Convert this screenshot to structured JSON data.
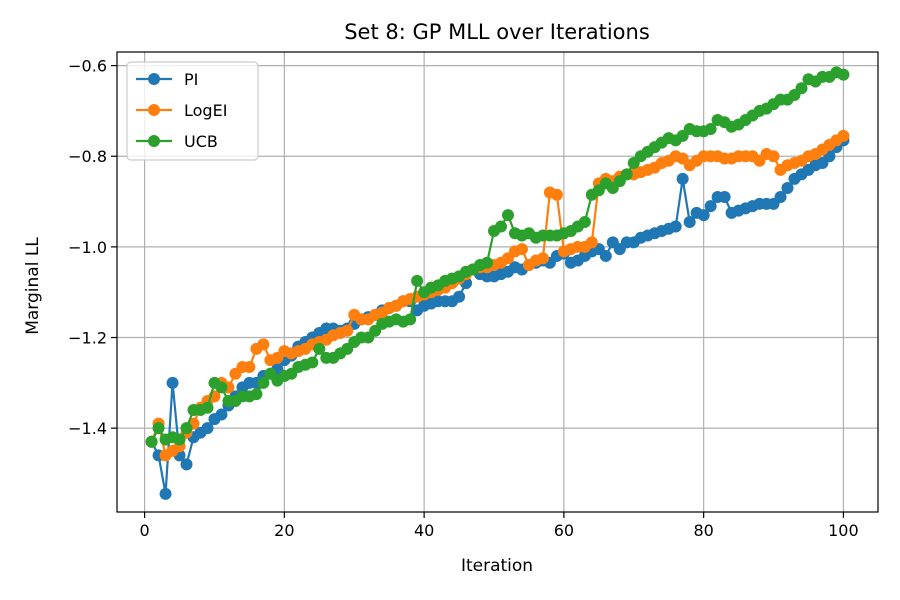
{
  "chart_data": {
    "type": "line",
    "title": "Set 8: GP MLL over Iterations",
    "xlabel": "Iteration",
    "ylabel": "Marginal LL",
    "xlim": [
      -3.95,
      104.95
    ],
    "ylim": [
      -1.585,
      -0.57
    ],
    "xticks": [
      0,
      20,
      40,
      60,
      80,
      100
    ],
    "xtick_labels": [
      "0",
      "20",
      "40",
      "60",
      "80",
      "100"
    ],
    "yticks": [
      -1.4,
      -1.2,
      -1.0,
      -0.8,
      -0.6
    ],
    "ytick_labels": [
      "−1.4",
      "−1.2",
      "−1.0",
      "−0.8",
      "−0.6"
    ],
    "grid": true,
    "legend_position": "top-left",
    "series": [
      {
        "name": "PI",
        "color": "#1f77b4",
        "x": [
          1,
          2,
          3,
          4,
          5,
          6,
          7,
          8,
          9,
          10,
          11,
          12,
          13,
          14,
          15,
          16,
          17,
          18,
          19,
          20,
          21,
          22,
          23,
          24,
          25,
          26,
          27,
          28,
          29,
          30,
          31,
          32,
          33,
          34,
          35,
          36,
          37,
          38,
          39,
          40,
          41,
          42,
          43,
          44,
          45,
          46,
          47,
          48,
          49,
          50,
          51,
          52,
          53,
          54,
          55,
          56,
          57,
          58,
          59,
          60,
          61,
          62,
          63,
          64,
          65,
          66,
          67,
          68,
          69,
          70,
          71,
          72,
          73,
          74,
          75,
          76,
          77,
          78,
          79,
          80,
          81,
          82,
          83,
          84,
          85,
          86,
          87,
          88,
          89,
          90,
          91,
          92,
          93,
          94,
          95,
          96,
          97,
          98,
          99,
          100
        ],
        "values": [
          -1.43,
          -1.46,
          -1.545,
          -1.3,
          -1.46,
          -1.48,
          -1.42,
          -1.41,
          -1.4,
          -1.38,
          -1.37,
          -1.35,
          -1.33,
          -1.31,
          -1.3,
          -1.3,
          -1.285,
          -1.28,
          -1.27,
          -1.25,
          -1.24,
          -1.22,
          -1.21,
          -1.2,
          -1.19,
          -1.18,
          -1.18,
          -1.185,
          -1.18,
          -1.17,
          -1.16,
          -1.155,
          -1.15,
          -1.14,
          -1.135,
          -1.13,
          -1.12,
          -1.12,
          -1.14,
          -1.13,
          -1.125,
          -1.12,
          -1.12,
          -1.12,
          -1.11,
          -1.08,
          -1.05,
          -1.06,
          -1.065,
          -1.065,
          -1.06,
          -1.055,
          -1.045,
          -1.05,
          -1.04,
          -1.035,
          -1.03,
          -1.035,
          -1.02,
          -1.015,
          -1.035,
          -1.03,
          -1.02,
          -1.01,
          -1.005,
          -1.02,
          -0.99,
          -1.005,
          -0.99,
          -0.99,
          -0.98,
          -0.975,
          -0.97,
          -0.965,
          -0.96,
          -0.955,
          -0.85,
          -0.945,
          -0.925,
          -0.93,
          -0.91,
          -0.89,
          -0.89,
          -0.925,
          -0.92,
          -0.915,
          -0.91,
          -0.905,
          -0.905,
          -0.905,
          -0.89,
          -0.87,
          -0.85,
          -0.84,
          -0.83,
          -0.82,
          -0.815,
          -0.8,
          -0.78,
          -0.765
        ]
      },
      {
        "name": "LogEI",
        "color": "#ff7f0e",
        "x": [
          1,
          2,
          3,
          4,
          5,
          6,
          7,
          8,
          9,
          10,
          11,
          12,
          13,
          14,
          15,
          16,
          17,
          18,
          19,
          20,
          21,
          22,
          23,
          24,
          25,
          26,
          27,
          28,
          29,
          30,
          31,
          32,
          33,
          34,
          35,
          36,
          37,
          38,
          39,
          40,
          41,
          42,
          43,
          44,
          45,
          46,
          47,
          48,
          49,
          50,
          51,
          52,
          53,
          54,
          55,
          56,
          57,
          58,
          59,
          60,
          61,
          62,
          63,
          64,
          65,
          66,
          67,
          68,
          69,
          70,
          71,
          72,
          73,
          74,
          75,
          76,
          77,
          78,
          79,
          80,
          81,
          82,
          83,
          84,
          85,
          86,
          87,
          88,
          89,
          90,
          91,
          92,
          93,
          94,
          95,
          96,
          97,
          98,
          99,
          100
        ],
        "values": [
          -1.43,
          -1.39,
          -1.46,
          -1.45,
          -1.44,
          -1.41,
          -1.39,
          -1.355,
          -1.34,
          -1.33,
          -1.3,
          -1.31,
          -1.28,
          -1.265,
          -1.265,
          -1.225,
          -1.215,
          -1.25,
          -1.245,
          -1.23,
          -1.235,
          -1.23,
          -1.225,
          -1.215,
          -1.21,
          -1.205,
          -1.195,
          -1.19,
          -1.185,
          -1.15,
          -1.16,
          -1.16,
          -1.15,
          -1.145,
          -1.135,
          -1.13,
          -1.12,
          -1.115,
          -1.11,
          -1.105,
          -1.1,
          -1.095,
          -1.09,
          -1.08,
          -1.07,
          -1.06,
          -1.05,
          -1.045,
          -1.045,
          -1.04,
          -1.035,
          -1.025,
          -1.01,
          -1.005,
          -1.04,
          -1.03,
          -1.025,
          -0.88,
          -0.885,
          -1.01,
          -1.005,
          -1.0,
          -1.0,
          -0.99,
          -0.86,
          -0.85,
          -0.855,
          -0.845,
          -0.84,
          -0.84,
          -0.835,
          -0.83,
          -0.825,
          -0.815,
          -0.81,
          -0.8,
          -0.805,
          -0.82,
          -0.81,
          -0.8,
          -0.8,
          -0.8,
          -0.805,
          -0.805,
          -0.8,
          -0.8,
          -0.8,
          -0.81,
          -0.795,
          -0.8,
          -0.83,
          -0.82,
          -0.815,
          -0.81,
          -0.8,
          -0.795,
          -0.785,
          -0.775,
          -0.765,
          -0.755
        ]
      },
      {
        "name": "UCB",
        "color": "#2ca02c",
        "x": [
          1,
          2,
          3,
          4,
          5,
          6,
          7,
          8,
          9,
          10,
          11,
          12,
          13,
          14,
          15,
          16,
          17,
          18,
          19,
          20,
          21,
          22,
          23,
          24,
          25,
          26,
          27,
          28,
          29,
          30,
          31,
          32,
          33,
          34,
          35,
          36,
          37,
          38,
          39,
          40,
          41,
          42,
          43,
          44,
          45,
          46,
          47,
          48,
          49,
          50,
          51,
          52,
          53,
          54,
          55,
          56,
          57,
          58,
          59,
          60,
          61,
          62,
          63,
          64,
          65,
          66,
          67,
          68,
          69,
          70,
          71,
          72,
          73,
          74,
          75,
          76,
          77,
          78,
          79,
          80,
          81,
          82,
          83,
          84,
          85,
          86,
          87,
          88,
          89,
          90,
          91,
          92,
          93,
          94,
          95,
          96,
          97,
          98,
          99,
          100
        ],
        "values": [
          -1.43,
          -1.4,
          -1.425,
          -1.42,
          -1.425,
          -1.4,
          -1.36,
          -1.36,
          -1.355,
          -1.3,
          -1.31,
          -1.34,
          -1.34,
          -1.33,
          -1.33,
          -1.325,
          -1.3,
          -1.28,
          -1.295,
          -1.285,
          -1.28,
          -1.265,
          -1.26,
          -1.255,
          -1.225,
          -1.245,
          -1.245,
          -1.235,
          -1.225,
          -1.21,
          -1.2,
          -1.2,
          -1.185,
          -1.17,
          -1.165,
          -1.16,
          -1.165,
          -1.16,
          -1.075,
          -1.1,
          -1.09,
          -1.085,
          -1.075,
          -1.07,
          -1.065,
          -1.055,
          -1.05,
          -1.04,
          -1.035,
          -0.965,
          -0.955,
          -0.93,
          -0.97,
          -0.975,
          -0.97,
          -0.98,
          -0.975,
          -0.975,
          -0.975,
          -0.97,
          -0.965,
          -0.955,
          -0.945,
          -0.885,
          -0.875,
          -0.86,
          -0.87,
          -0.855,
          -0.84,
          -0.815,
          -0.8,
          -0.79,
          -0.78,
          -0.77,
          -0.76,
          -0.765,
          -0.755,
          -0.74,
          -0.745,
          -0.745,
          -0.74,
          -0.72,
          -0.725,
          -0.735,
          -0.73,
          -0.72,
          -0.71,
          -0.7,
          -0.695,
          -0.685,
          -0.675,
          -0.675,
          -0.665,
          -0.65,
          -0.63,
          -0.635,
          -0.625,
          -0.625,
          -0.615,
          -0.62
        ]
      }
    ]
  }
}
